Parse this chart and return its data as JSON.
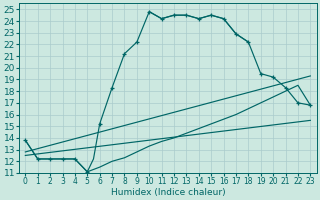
{
  "xlabel": "Humidex (Indice chaleur)",
  "background_color": "#cce8e0",
  "grid_color": "#aacccc",
  "line_color": "#006666",
  "xlim": [
    -0.5,
    23.5
  ],
  "ylim": [
    11,
    25.5
  ],
  "xticks": [
    0,
    1,
    2,
    3,
    4,
    5,
    6,
    7,
    8,
    9,
    10,
    11,
    12,
    13,
    14,
    15,
    16,
    17,
    18,
    19,
    20,
    21,
    22,
    23
  ],
  "yticks": [
    11,
    12,
    13,
    14,
    15,
    16,
    17,
    18,
    19,
    20,
    21,
    22,
    23,
    24,
    25
  ],
  "ascending_x": [
    0,
    1,
    2,
    3,
    4,
    5,
    5.5,
    6,
    7,
    8,
    9,
    10,
    11,
    12,
    13,
    14,
    15,
    16,
    17,
    18
  ],
  "ascending_y": [
    13.8,
    12.2,
    12.2,
    12.2,
    12.2,
    11.1,
    12.2,
    15.2,
    18.3,
    21.2,
    22.2,
    24.8,
    24.2,
    24.5,
    24.5,
    24.2,
    24.5,
    24.2,
    22.9,
    22.2
  ],
  "descending_x": [
    10,
    11,
    12,
    13,
    14,
    15,
    16,
    17,
    18,
    19,
    20,
    21,
    22,
    23
  ],
  "descending_y": [
    24.8,
    24.2,
    24.5,
    24.5,
    24.2,
    24.5,
    24.2,
    22.9,
    22.2,
    19.5,
    19.2,
    18.3,
    17.0,
    16.8
  ],
  "bottom_curve_x": [
    0,
    1,
    2,
    3,
    4,
    5,
    6,
    7,
    8,
    9,
    10,
    11,
    12,
    13,
    14,
    15,
    16,
    17,
    18,
    19,
    20,
    21,
    22,
    23
  ],
  "bottom_curve_y": [
    13.8,
    12.2,
    12.2,
    12.2,
    12.2,
    11.1,
    11.5,
    12.0,
    12.3,
    12.8,
    13.3,
    13.7,
    14.0,
    14.4,
    14.8,
    15.2,
    15.6,
    16.0,
    16.5,
    17.0,
    17.5,
    18.0,
    18.5,
    16.8
  ],
  "ref_line1_x": [
    0,
    23
  ],
  "ref_line1_y": [
    12.8,
    19.3
  ],
  "ref_line2_x": [
    0,
    23
  ],
  "ref_line2_y": [
    12.5,
    15.5
  ],
  "markers_x": [
    0,
    1,
    2,
    3,
    4,
    5,
    6,
    7,
    8,
    9,
    10,
    11,
    12,
    13,
    14,
    15,
    16,
    17,
    18,
    19,
    20,
    21,
    22,
    23
  ],
  "markers_y": [
    13.8,
    12.2,
    12.2,
    12.2,
    12.2,
    11.1,
    15.2,
    18.3,
    21.2,
    22.2,
    24.8,
    24.2,
    24.5,
    24.5,
    24.2,
    24.5,
    24.2,
    22.9,
    22.2,
    19.5,
    19.2,
    18.3,
    17.0,
    16.8
  ],
  "font_size": 6.5,
  "linewidth": 0.85
}
